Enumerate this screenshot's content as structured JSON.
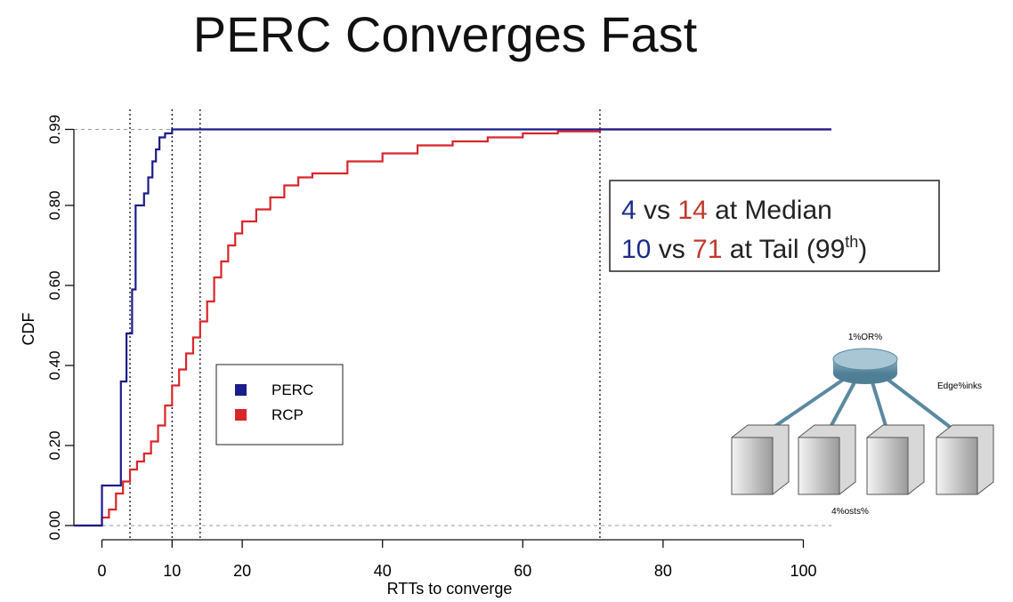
{
  "chart_data": {
    "type": "step",
    "title": "PERC Converges Fast",
    "xlabel": "RTTs to converge",
    "ylabel": "CDF",
    "xlim": [
      -4,
      104
    ],
    "ylim": [
      -0.01,
      1.04
    ],
    "xticks": [
      0,
      10,
      20,
      40,
      60,
      80,
      100
    ],
    "yticks": [
      {
        "value": 0,
        "label": "0.00"
      },
      {
        "value": 0.2,
        "label": "0.20"
      },
      {
        "value": 0.4,
        "label": "0.40"
      },
      {
        "value": 0.6,
        "label": "0.60"
      },
      {
        "value": 0.8,
        "label": "0.80"
      },
      0.99
    ],
    "vlines": [
      4,
      10,
      14,
      71
    ],
    "hlines": [
      0,
      0.99
    ],
    "series": [
      {
        "name": "PERC",
        "color": "#1c1c8a",
        "x": [
          -4,
          0,
          0,
          2.7,
          2.7,
          3.5,
          3.5,
          4.3,
          4.3,
          4.8,
          4.8,
          6,
          6,
          6.6,
          6.6,
          7.2,
          7.2,
          7.7,
          7.7,
          8.2,
          8.2,
          9,
          9,
          10,
          10,
          104
        ],
        "values": [
          0,
          0,
          0.1,
          0.1,
          0.36,
          0.36,
          0.48,
          0.48,
          0.59,
          0.59,
          0.8,
          0.8,
          0.83,
          0.83,
          0.87,
          0.87,
          0.91,
          0.91,
          0.94,
          0.94,
          0.97,
          0.97,
          0.98,
          0.98,
          0.99,
          0.99
        ]
      },
      {
        "name": "RCP",
        "color": "#d8262a",
        "x": [
          -4,
          0,
          0,
          1,
          1,
          2,
          2,
          3,
          3,
          4,
          4,
          5,
          5,
          6,
          6,
          7,
          7,
          8,
          8,
          9,
          9,
          10,
          10,
          11,
          11,
          12,
          12,
          13,
          13,
          14,
          14,
          15,
          15,
          16,
          16,
          17,
          17,
          18,
          18,
          19,
          19,
          20,
          20,
          22,
          22,
          24,
          24,
          26,
          26,
          28,
          28,
          30,
          30,
          35,
          35,
          40,
          40,
          45,
          45,
          50,
          50,
          55,
          55,
          60,
          60,
          65,
          65,
          71,
          71,
          104
        ],
        "values": [
          0,
          0,
          0.02,
          0.02,
          0.04,
          0.04,
          0.08,
          0.08,
          0.11,
          0.11,
          0.14,
          0.14,
          0.16,
          0.16,
          0.18,
          0.18,
          0.21,
          0.21,
          0.25,
          0.25,
          0.3,
          0.3,
          0.35,
          0.35,
          0.39,
          0.39,
          0.43,
          0.43,
          0.47,
          0.47,
          0.51,
          0.51,
          0.56,
          0.56,
          0.62,
          0.62,
          0.66,
          0.66,
          0.7,
          0.7,
          0.73,
          0.73,
          0.76,
          0.76,
          0.79,
          0.79,
          0.82,
          0.82,
          0.85,
          0.85,
          0.87,
          0.87,
          0.88,
          0.88,
          0.91,
          0.91,
          0.93,
          0.93,
          0.95,
          0.95,
          0.96,
          0.96,
          0.97,
          0.97,
          0.98,
          0.98,
          0.985,
          0.985,
          0.99,
          0.99
        ]
      }
    ]
  },
  "annotation": {
    "lines": [
      [
        {
          "text": "4",
          "color": "#1c2a8c"
        },
        {
          "text": " vs ",
          "color": "#222"
        },
        {
          "text": "14",
          "color": "#c0392b"
        },
        {
          "text": " at Median",
          "color": "#222"
        }
      ],
      [
        {
          "text": "10",
          "color": "#1c2a8c"
        },
        {
          "text": " vs ",
          "color": "#222"
        },
        {
          "text": "71",
          "color": "#c0392b"
        },
        {
          "text": " at Tail (99",
          "color": "#222"
        },
        {
          "text": "th",
          "color": "#222",
          "sup": true
        },
        {
          "text": ")",
          "color": "#222"
        }
      ]
    ]
  },
  "diagram": {
    "router_label": "1%OR%",
    "link_label": "Edge%inks",
    "hosts_label": "4%osts%"
  }
}
